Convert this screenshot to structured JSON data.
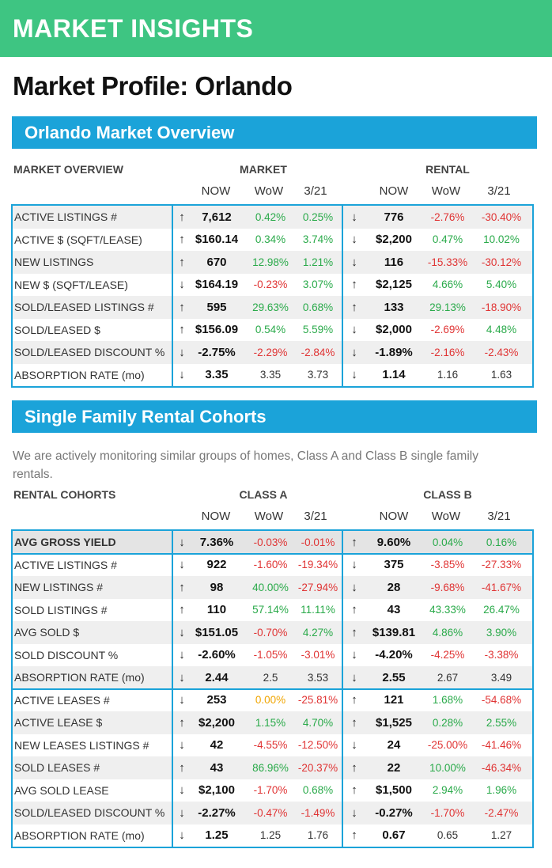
{
  "banner": {
    "title": "MARKET INSIGHTS"
  },
  "page_title": "Market Profile: Orlando",
  "overview": {
    "section_title": "Orlando Market Overview",
    "table_title": "MARKET OVERVIEW",
    "group_a": "MARKET",
    "group_b": "RENTAL",
    "cols": [
      "NOW",
      "WoW",
      "3/21"
    ],
    "rows": [
      {
        "label": "ACTIVE LISTINGS #",
        "a": {
          "arrow": "↑",
          "now": "7,612",
          "wow": "0.42%",
          "wow_c": "green",
          "m": "0.25%",
          "m_c": "green"
        },
        "b": {
          "arrow": "↓",
          "now": "776",
          "wow": "-2.76%",
          "wow_c": "red",
          "m": "-30.40%",
          "m_c": "red"
        }
      },
      {
        "label": "ACTIVE $ (SQFT/LEASE)",
        "a": {
          "arrow": "↑",
          "now": "$160.14",
          "wow": "0.34%",
          "wow_c": "green",
          "m": "3.74%",
          "m_c": "green"
        },
        "b": {
          "arrow": "↓",
          "now": "$2,200",
          "wow": "0.47%",
          "wow_c": "green",
          "m": "10.02%",
          "m_c": "green"
        }
      },
      {
        "label": "NEW LISTINGS",
        "a": {
          "arrow": "↑",
          "now": "670",
          "wow": "12.98%",
          "wow_c": "green",
          "m": "1.21%",
          "m_c": "green"
        },
        "b": {
          "arrow": "↓",
          "now": "116",
          "wow": "-15.33%",
          "wow_c": "red",
          "m": "-30.12%",
          "m_c": "red"
        }
      },
      {
        "label": "NEW $ (SQFT/LEASE)",
        "a": {
          "arrow": "↓",
          "now": "$164.19",
          "wow": "-0.23%",
          "wow_c": "red",
          "m": "3.07%",
          "m_c": "green"
        },
        "b": {
          "arrow": "↑",
          "now": "$2,125",
          "wow": "4.66%",
          "wow_c": "green",
          "m": "5.40%",
          "m_c": "green"
        }
      },
      {
        "label": "SOLD/LEASED LISTINGS #",
        "a": {
          "arrow": "↑",
          "now": "595",
          "wow": "29.63%",
          "wow_c": "green",
          "m": "0.68%",
          "m_c": "green"
        },
        "b": {
          "arrow": "↑",
          "now": "133",
          "wow": "29.13%",
          "wow_c": "green",
          "m": "-18.90%",
          "m_c": "red"
        }
      },
      {
        "label": "SOLD/LEASED $",
        "a": {
          "arrow": "↑",
          "now": "$156.09",
          "wow": "0.54%",
          "wow_c": "green",
          "m": "5.59%",
          "m_c": "green"
        },
        "b": {
          "arrow": "↓",
          "now": "$2,000",
          "wow": "-2.69%",
          "wow_c": "red",
          "m": "4.48%",
          "m_c": "green"
        }
      },
      {
        "label": "SOLD/LEASED DISCOUNT %",
        "a": {
          "arrow": "↓",
          "now": "-2.75%",
          "wow": "-2.29%",
          "wow_c": "red",
          "m": "-2.84%",
          "m_c": "red"
        },
        "b": {
          "arrow": "↓",
          "now": "-1.89%",
          "wow": "-2.16%",
          "wow_c": "red",
          "m": "-2.43%",
          "m_c": "red"
        }
      },
      {
        "label": "ABSORPTION RATE (mo)",
        "a": {
          "arrow": "↓",
          "now": "3.35",
          "wow": "3.35",
          "wow_c": "plain",
          "m": "3.73",
          "m_c": "plain"
        },
        "b": {
          "arrow": "↓",
          "now": "1.14",
          "wow": "1.16",
          "wow_c": "plain",
          "m": "1.63",
          "m_c": "plain"
        }
      }
    ]
  },
  "cohorts": {
    "section_title": "Single Family Rental Cohorts",
    "intro": "We are actively monitoring similar groups of homes, Class A and Class B single family rentals.",
    "table_title": "RENTAL COHORTS",
    "group_a": "CLASS A",
    "group_b": "CLASS B",
    "cols": [
      "NOW",
      "WoW",
      "3/21"
    ],
    "rows": [
      {
        "label": "AVG GROSS YIELD",
        "bold": true,
        "a": {
          "arrow": "↓",
          "now": "7.36%",
          "wow": "-0.03%",
          "wow_c": "red",
          "m": "-0.01%",
          "m_c": "red"
        },
        "b": {
          "arrow": "↑",
          "now": "9.60%",
          "wow": "0.04%",
          "wow_c": "green",
          "m": "0.16%",
          "m_c": "green"
        }
      },
      {
        "label": "ACTIVE LISTINGS #",
        "a": {
          "arrow": "↓",
          "now": "922",
          "wow": "-1.60%",
          "wow_c": "red",
          "m": "-19.34%",
          "m_c": "red"
        },
        "b": {
          "arrow": "↓",
          "now": "375",
          "wow": "-3.85%",
          "wow_c": "red",
          "m": "-27.33%",
          "m_c": "red"
        }
      },
      {
        "label": "NEW LISTINGS #",
        "a": {
          "arrow": "↑",
          "now": "98",
          "wow": "40.00%",
          "wow_c": "green",
          "m": "-27.94%",
          "m_c": "red"
        },
        "b": {
          "arrow": "↓",
          "now": "28",
          "wow": "-9.68%",
          "wow_c": "red",
          "m": "-41.67%",
          "m_c": "red"
        }
      },
      {
        "label": "SOLD LISTINGS #",
        "a": {
          "arrow": "↑",
          "now": "110",
          "wow": "57.14%",
          "wow_c": "green",
          "m": "11.11%",
          "m_c": "green"
        },
        "b": {
          "arrow": "↑",
          "now": "43",
          "wow": "43.33%",
          "wow_c": "green",
          "m": "26.47%",
          "m_c": "green"
        }
      },
      {
        "label": "AVG SOLD $",
        "a": {
          "arrow": "↓",
          "now": "$151.05",
          "wow": "-0.70%",
          "wow_c": "red",
          "m": "4.27%",
          "m_c": "green"
        },
        "b": {
          "arrow": "↑",
          "now": "$139.81",
          "wow": "4.86%",
          "wow_c": "green",
          "m": "3.90%",
          "m_c": "green"
        }
      },
      {
        "label": "SOLD DISCOUNT %",
        "a": {
          "arrow": "↓",
          "now": "-2.60%",
          "wow": "-1.05%",
          "wow_c": "red",
          "m": "-3.01%",
          "m_c": "red"
        },
        "b": {
          "arrow": "↓",
          "now": "-4.20%",
          "wow": "-4.25%",
          "wow_c": "red",
          "m": "-3.38%",
          "m_c": "red"
        }
      },
      {
        "label": "ABSORPTION RATE (mo)",
        "a": {
          "arrow": "↓",
          "now": "2.44",
          "wow": "2.5",
          "wow_c": "plain",
          "m": "3.53",
          "m_c": "plain"
        },
        "b": {
          "arrow": "↓",
          "now": "2.55",
          "wow": "2.67",
          "wow_c": "plain",
          "m": "3.49",
          "m_c": "plain"
        }
      },
      {
        "label": "ACTIVE LEASES #",
        "a": {
          "arrow": "↓",
          "now": "253",
          "wow": "0.00%",
          "wow_c": "orange",
          "m": "-25.81%",
          "m_c": "red"
        },
        "b": {
          "arrow": "↑",
          "now": "121",
          "wow": "1.68%",
          "wow_c": "green",
          "m": "-54.68%",
          "m_c": "red"
        }
      },
      {
        "label": "ACTIVE LEASE $",
        "a": {
          "arrow": "↑",
          "now": "$2,200",
          "wow": "1.15%",
          "wow_c": "green",
          "m": "4.70%",
          "m_c": "green"
        },
        "b": {
          "arrow": "↑",
          "now": "$1,525",
          "wow": "0.28%",
          "wow_c": "green",
          "m": "2.55%",
          "m_c": "green"
        }
      },
      {
        "label": "NEW LEASES LISTINGS #",
        "a": {
          "arrow": "↓",
          "now": "42",
          "wow": "-4.55%",
          "wow_c": "red",
          "m": "-12.50%",
          "m_c": "red"
        },
        "b": {
          "arrow": "↓",
          "now": "24",
          "wow": "-25.00%",
          "wow_c": "red",
          "m": "-41.46%",
          "m_c": "red"
        }
      },
      {
        "label": "SOLD LEASES #",
        "a": {
          "arrow": "↑",
          "now": "43",
          "wow": "86.96%",
          "wow_c": "green",
          "m": "-20.37%",
          "m_c": "red"
        },
        "b": {
          "arrow": "↑",
          "now": "22",
          "wow": "10.00%",
          "wow_c": "green",
          "m": "-46.34%",
          "m_c": "red"
        }
      },
      {
        "label": "AVG SOLD LEASE",
        "a": {
          "arrow": "↓",
          "now": "$2,100",
          "wow": "-1.70%",
          "wow_c": "red",
          "m": "0.68%",
          "m_c": "green"
        },
        "b": {
          "arrow": "↑",
          "now": "$1,500",
          "wow": "2.94%",
          "wow_c": "green",
          "m": "1.96%",
          "m_c": "green"
        }
      },
      {
        "label": "SOLD/LEASED DISCOUNT %",
        "a": {
          "arrow": "↓",
          "now": "-2.27%",
          "wow": "-0.47%",
          "wow_c": "red",
          "m": "-1.49%",
          "m_c": "red"
        },
        "b": {
          "arrow": "↓",
          "now": "-0.27%",
          "wow": "-1.70%",
          "wow_c": "red",
          "m": "-2.47%",
          "m_c": "red"
        }
      },
      {
        "label": "ABSORPTION RATE (mo)",
        "a": {
          "arrow": "↓",
          "now": "1.25",
          "wow": "1.25",
          "wow_c": "plain",
          "m": "1.76",
          "m_c": "plain"
        },
        "b": {
          "arrow": "↑",
          "now": "0.67",
          "wow": "0.65",
          "wow_c": "plain",
          "m": "1.27",
          "m_c": "plain"
        }
      }
    ]
  }
}
